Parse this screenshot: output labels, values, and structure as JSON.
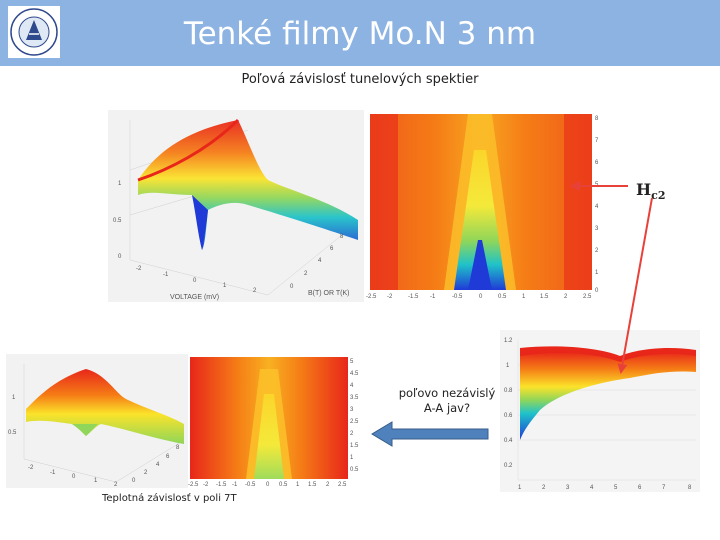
{
  "header": {
    "title": "Tenké filmy Mo.N 3 nm",
    "logo_text": "ÚSTAV EXPERIMENTÁLNEJ FYZIKY · CENTRUM NÍZKYCH TEPLÔT"
  },
  "subtitle": "Poľová závislosť tunelových spektier",
  "annotations": {
    "hc2_base": "H",
    "hc2_sub": "c2",
    "note_line1": "poľovo nezávislý",
    "note_line2": "A-A jav?",
    "caption": "Teplotná závislosť v poli 7T"
  },
  "figures": {
    "top_surface": {
      "ticks_z": [
        "1",
        "0.5",
        "0"
      ],
      "ticks_v": [
        "-2",
        "-1",
        "0",
        "1",
        "2"
      ],
      "ticks_b": [
        "8",
        "6",
        "4",
        "2",
        "0"
      ],
      "xlabel": "VOLTAGE (mV)",
      "ylabel": "B(T) OR T(K)"
    },
    "top_map": {
      "ticks_x": [
        "-2.5",
        "-2",
        "-1.5",
        "-1",
        "-0.5",
        "0",
        "0.5",
        "1",
        "1.5",
        "2",
        "2.5"
      ],
      "ticks_y": [
        "8",
        "7",
        "6",
        "5",
        "4",
        "3",
        "2",
        "1",
        "0"
      ]
    },
    "bottom_surface": {
      "ticks_z": [
        "1",
        "0.5"
      ],
      "ticks_x": [
        "-2",
        "-1",
        "0",
        "1",
        "2"
      ],
      "ticks_y": [
        "8",
        "6",
        "4",
        "2",
        "0"
      ]
    },
    "bottom_map": {
      "ticks_x": [
        "-2.5",
        "-2",
        "-1.5",
        "-1",
        "-0.5",
        "0",
        "0.5",
        "1",
        "1.5",
        "2",
        "2.5"
      ],
      "ticks_y": [
        "5",
        "4.5",
        "4",
        "3.5",
        "3",
        "2.5",
        "2",
        "1.5",
        "1",
        "0.5"
      ]
    },
    "right_surface": {
      "ticks_z": [
        "1.2",
        "1",
        "0.8",
        "0.6",
        "0.4",
        "0.2"
      ],
      "ticks_x": [
        "1",
        "2",
        "3",
        "4",
        "5",
        "6",
        "7",
        "8"
      ]
    }
  },
  "colors": {
    "header": "#8db3e2",
    "arrow_red": "#e8413a",
    "arrow_blue": "#4f81bd"
  }
}
